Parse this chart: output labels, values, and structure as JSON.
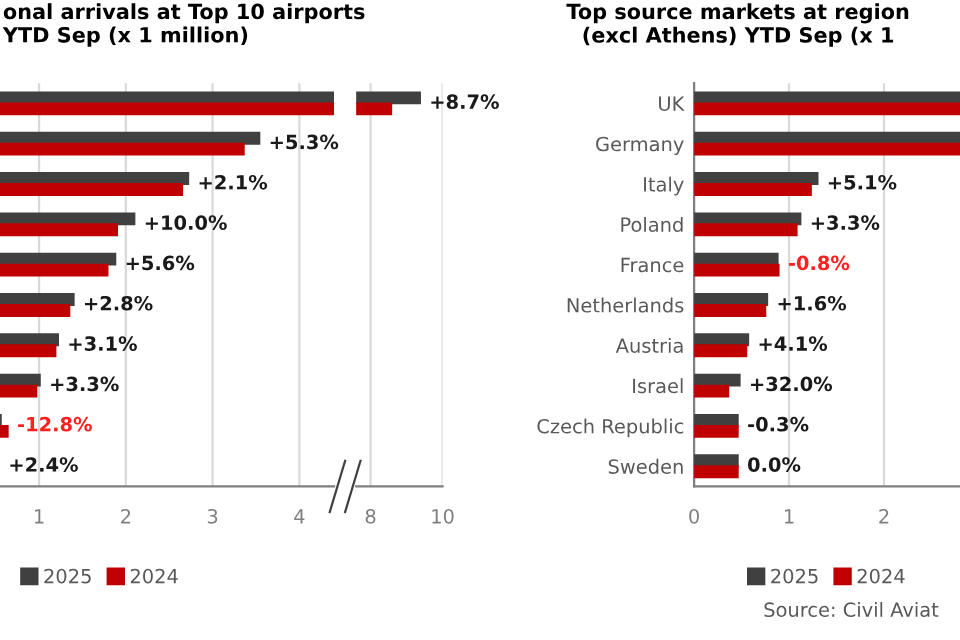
{
  "chart_data": [
    {
      "type": "bar",
      "orientation": "horizontal",
      "title": "onal arrivals at Top 10 airports\nYTD Sep (x 1 million)",
      "categories": [
        null,
        null,
        null,
        null,
        null,
        null,
        null,
        null,
        null,
        null
      ],
      "series": [
        {
          "name": "2025",
          "color": "#404040",
          "values": [
            4.4,
            3.55,
            2.73,
            2.11,
            1.89,
            1.41,
            1.23,
            1.02,
            0.57,
            null
          ]
        },
        {
          "name": "2024",
          "color": "#c00000",
          "values": [
            4.4,
            3.37,
            2.66,
            1.91,
            1.8,
            1.36,
            1.2,
            0.98,
            0.65,
            null
          ]
        }
      ],
      "value_labels": [
        null,
        "+5.3%",
        "+2.1%",
        "+10.0%",
        "+5.6%",
        "+2.8%",
        "+3.1%",
        "+3.3%",
        "-12.8%",
        "+2.4%"
      ],
      "xlim": [
        0.55,
        4.4
      ],
      "xticks": [
        1,
        2,
        3,
        4
      ],
      "grid": "x",
      "legend": "bottom"
    },
    {
      "type": "bar",
      "orientation": "horizontal",
      "categories": [
        null,
        null,
        null,
        null,
        null,
        null,
        null,
        null,
        null,
        null
      ],
      "series": [
        {
          "color": "#404040",
          "values": [
            9.4,
            null,
            null,
            null,
            null,
            null,
            null,
            null,
            null,
            null
          ]
        },
        {
          "color": "#c00000",
          "values": [
            8.6,
            null,
            null,
            null,
            null,
            null,
            null,
            null,
            null,
            null
          ]
        }
      ],
      "value_labels": [
        "+8.7%",
        null,
        null,
        null,
        null,
        null,
        null,
        null,
        null,
        null
      ],
      "xlim": [
        7.6,
        10
      ],
      "xticks": [
        8,
        10
      ],
      "grid": "x"
    },
    {
      "type": "bar",
      "orientation": "horizontal",
      "title": "Top source markets at region\n(excl Athens) YTD Sep (x 1",
      "categories": [
        "UK",
        "Germany",
        "Italy",
        "Poland",
        "France",
        "Netherlands",
        "Austria",
        "Israel",
        "Czech Republic",
        "Sweden"
      ],
      "series": [
        {
          "name": "2025",
          "color": "#404040",
          "values": [
            2.8,
            2.8,
            1.31,
            1.13,
            0.89,
            0.78,
            0.58,
            0.49,
            0.47,
            0.47
          ]
        },
        {
          "name": "2024",
          "color": "#c00000",
          "values": [
            2.8,
            2.8,
            1.24,
            1.09,
            0.9,
            0.76,
            0.56,
            0.37,
            0.47,
            0.47
          ]
        }
      ],
      "value_labels": [
        null,
        null,
        "+5.1%",
        "+3.3%",
        "-0.8%",
        "+1.6%",
        "+4.1%",
        "+32.0%",
        "-0.3%",
        "0.0%"
      ],
      "xlim": [
        0,
        2.8
      ],
      "xticks": [
        0,
        1,
        2
      ],
      "grid": "x",
      "legend": "bottom",
      "annotations": [
        "Source: Civil Aviat"
      ]
    }
  ]
}
